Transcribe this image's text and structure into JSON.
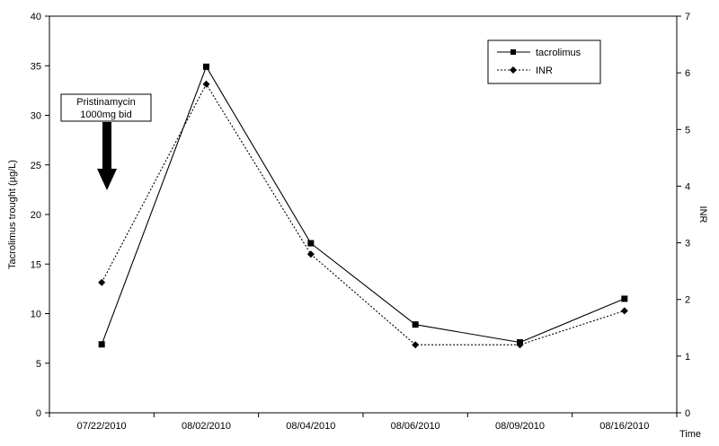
{
  "chart_data": {
    "type": "line",
    "categories": [
      "07/22/2010",
      "08/02/2010",
      "08/04/2010",
      "08/06/2010",
      "08/09/2010",
      "08/16/2010"
    ],
    "xlabel": "Time",
    "ylabel": "Tacrolimus trought (µg/L)",
    "y2label": "INR",
    "ylim": [
      0,
      40
    ],
    "y2lim": [
      0,
      7
    ],
    "yticks": [
      "0",
      "5",
      "10",
      "15",
      "20",
      "25",
      "30",
      "35",
      "40"
    ],
    "y2ticks": [
      "0",
      "1",
      "2",
      "3",
      "4",
      "5",
      "6",
      "7"
    ],
    "grid": false,
    "legend_position": "top-right",
    "series": [
      {
        "name": "tacrolimus",
        "axis": "left",
        "line": "solid",
        "marker": "square",
        "values": [
          6.9,
          34.9,
          17.1,
          8.9,
          7.1,
          11.5
        ]
      },
      {
        "name": "INR",
        "axis": "right",
        "line": "dotted",
        "marker": "diamond",
        "values": [
          2.3,
          5.8,
          2.8,
          1.2,
          1.2,
          1.8
        ]
      }
    ],
    "annotation": {
      "line1": "Pristinamycin",
      "line2": "1000mg bid",
      "category": "07/22/2010"
    }
  }
}
